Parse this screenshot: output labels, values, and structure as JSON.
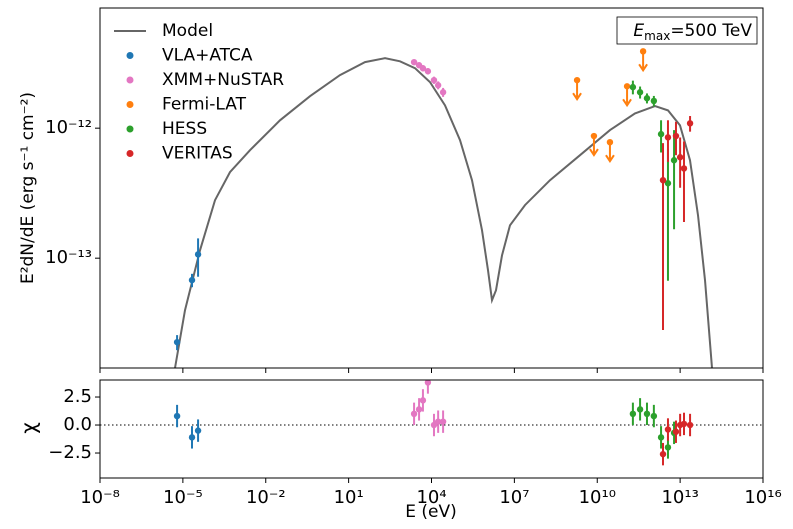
{
  "chart_data": [
    {
      "type": "scatter",
      "ylabel": "E²dN/dE (erg s⁻¹ cm⁻²)",
      "annotation": {
        "symbol": "E",
        "subscript": "max",
        "text": "=500 TeV"
      },
      "xscale": "log",
      "yscale": "log",
      "xlim": [
        1e-08,
        1e+16
      ],
      "xticks": [
        1e-08,
        1e-05,
        0.01,
        10,
        10000,
        10000000.0,
        10000000000.0,
        10000000000000.0,
        1e+16
      ],
      "ylim": [
        1.43e-14,
        8.4e-12
      ],
      "yticks": [
        {
          "value": 1e-13,
          "label": "10⁻¹³"
        },
        {
          "value": 1e-12,
          "label": "10⁻¹²"
        }
      ],
      "legend": "upper left",
      "series": [
        {
          "name": "Model",
          "type": "line",
          "color": "#666666",
          "x": [
            5.19e-06,
            1.19e-05,
            4.17e-05,
            0.000146,
            0.000508,
            0.00269,
            0.0328,
            0.4,
            4.88,
            39.2,
            207,
            724,
            2530,
            8830,
            30800,
            108000,
            292000,
            673000,
            1110000,
            1550000,
            2160000,
            3560000,
            6950000,
            24300000.0,
            195000000.0,
            2380000000.0,
            29000000000.0,
            233000000000.0,
            1230000000000.0,
            3640000000000.0,
            9890000000000.0,
            22800000000000.0,
            44400000000000.0,
            79400000000000.0,
            143000000000000.0
          ],
          "values": [
            1.43e-14,
            3.98e-14,
            1.15e-13,
            2.79e-13,
            4.59e-13,
            6.77e-13,
            1.15e-12,
            1.76e-12,
            2.56e-12,
            3.22e-12,
            3.45e-12,
            3.27e-12,
            2.89e-12,
            2.26e-12,
            1.5e-12,
            8.09e-13,
            3.98e-13,
            1.64e-13,
            8.09e-14,
            4.75e-14,
            5.67e-14,
            1.05e-13,
            1.79e-13,
            2.56e-13,
            3.98e-13,
            6.2e-13,
            9.66e-13,
            1.3e-12,
            1.48e-12,
            1.37e-12,
            1.05e-12,
            5.67e-13,
            2.14e-13,
            6.78e-14,
            1.43e-14
          ]
        },
        {
          "name": "VLA+ATCA",
          "color": "#1f77b4",
          "x": [
            6.17e-06,
            2.14e-05,
            3.55e-05
          ],
          "values": [
            2.26e-14,
            6.78e-14,
            1.07e-13
          ],
          "yerr": [
            3e-15,
            8e-15,
            3.5e-14
          ]
        },
        {
          "name": "XMM+NuSTAR",
          "color": "#e377c2",
          "x": [
            2340,
            3550,
            4900,
            7410,
            12300,
            17400,
            26300
          ],
          "values": [
            3.22e-12,
            3.05e-12,
            2.89e-12,
            2.74e-12,
            2.34e-12,
            2.14e-12,
            1.89e-12
          ],
          "yerr": [
            1.5e-13,
            1.5e-13,
            1.5e-13,
            1.5e-13,
            1.5e-13,
            1.5e-13,
            1.5e-13
          ]
        },
        {
          "name": "Fermi-LAT",
          "color": "#ff7f0e",
          "upper_limit": true,
          "x": [
            1860000000.0,
            7590000000.0,
            28800000000.0,
            120000000000.0,
            457000000000.0
          ],
          "values": [
            2.34e-12,
            8.7e-13,
            7.8e-13,
            2.1e-12,
            3.9e-12
          ]
        },
        {
          "name": "HESS",
          "color": "#2ca02c",
          "x": [
            195000000000.0,
            355000000000.0,
            631000000000.0,
            1120000000000.0,
            2040000000000.0,
            3630000000000.0,
            6030000000000.0
          ],
          "values": [
            2.07e-12,
            1.89e-12,
            1.7e-12,
            1.62e-12,
            9e-13,
            3.77e-13,
            5.67e-13
          ],
          "yerr": [
            2.5e-13,
            2e-13,
            1.5e-13,
            1.5e-13,
            2.5e-13,
            3.1e-13,
            4e-13
          ]
        },
        {
          "name": "VERITAS",
          "color": "#d62728",
          "x": [
            2400000000000.0,
            3630000000000.0,
            7080000000000.0,
            10000000000000.0,
            13800000000000.0,
            22900000000000.0
          ],
          "values": [
            3.98e-13,
            8.5e-13,
            8.7e-13,
            5.98e-13,
            4.9e-13,
            1.09e-12
          ],
          "yerr": [
            3.7e-13,
            3e-13,
            2.5e-13,
            2.5e-13,
            3e-13,
            1.5e-13
          ]
        }
      ]
    },
    {
      "type": "scatter",
      "xlabel": "E (eV)",
      "ylabel": "χ",
      "xscale": "log",
      "xlim": [
        1e-08,
        1e+16
      ],
      "xticks": [
        {
          "value": 1e-08,
          "label": "10⁻⁸"
        },
        {
          "value": 1e-05,
          "label": "10⁻⁵"
        },
        {
          "value": 0.01,
          "label": "10⁻²"
        },
        {
          "value": 10,
          "label": "10¹"
        },
        {
          "value": 10000,
          "label": "10⁴"
        },
        {
          "value": 10000000.0,
          "label": "10⁷"
        },
        {
          "value": 10000000000.0,
          "label": "10¹⁰"
        },
        {
          "value": 10000000000000.0,
          "label": "10¹³"
        },
        {
          "value": 1e+16,
          "label": "10¹⁶"
        }
      ],
      "ylim": [
        -4.73,
        4.02
      ],
      "yticks": [
        {
          "value": -2.5,
          "label": "−2.5"
        },
        {
          "value": 0,
          "label": "0.0"
        },
        2.5
      ],
      "zero_line": true,
      "series": [
        {
          "color": "#1f77b4",
          "x": [
            6.17e-06,
            2.14e-05,
            3.55e-05
          ],
          "values": [
            0.8,
            -1.1,
            -0.5
          ],
          "yerr": [
            1,
            1,
            1
          ]
        },
        {
          "color": "#e377c2",
          "x": [
            2340,
            3550,
            4900,
            7410,
            12300,
            17400,
            26300
          ],
          "values": [
            1.0,
            1.4,
            2.2,
            3.8,
            0.0,
            0.3,
            0.3
          ],
          "yerr": [
            1,
            1,
            1,
            1,
            1,
            1,
            1
          ]
        },
        {
          "color": "#2ca02c",
          "x": [
            195000000000.0,
            355000000000.0,
            631000000000.0,
            1120000000000.0,
            2040000000000.0,
            3630000000000.0,
            6030000000000.0
          ],
          "values": [
            1.0,
            1.4,
            1.0,
            0.8,
            -1.1,
            -2.0,
            -0.7
          ],
          "yerr": [
            1,
            1,
            1,
            1,
            1,
            1,
            1
          ]
        },
        {
          "color": "#d62728",
          "x": [
            2400000000000.0,
            3630000000000.0,
            7080000000000.0,
            10000000000000.0,
            13800000000000.0,
            22900000000000.0
          ],
          "values": [
            -2.6,
            -0.4,
            -0.6,
            0.0,
            0.1,
            0.0
          ],
          "yerr": [
            1,
            1,
            1,
            1,
            1,
            1
          ]
        }
      ]
    }
  ]
}
